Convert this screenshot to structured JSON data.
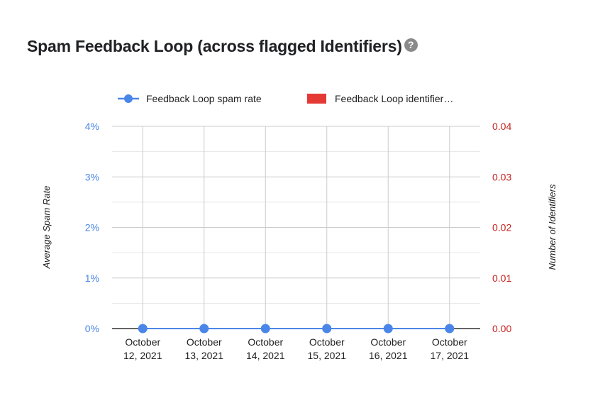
{
  "header": {
    "title": "Spam Feedback Loop (across flagged Identifiers)",
    "help_icon": "question-mark-icon"
  },
  "chart_data": {
    "type": "line",
    "title": "Spam Feedback Loop (across flagged Identifiers)",
    "categories": [
      "October 12, 2021",
      "October 13, 2021",
      "October 14, 2021",
      "October 15, 2021",
      "October 16, 2021",
      "October 17, 2021"
    ],
    "x_tick_lines": [
      [
        "October",
        "12, 2021"
      ],
      [
        "October",
        "13, 2021"
      ],
      [
        "October",
        "14, 2021"
      ],
      [
        "October",
        "15, 2021"
      ],
      [
        "October",
        "16, 2021"
      ],
      [
        "October",
        "17, 2021"
      ]
    ],
    "series": [
      {
        "name": "Feedback Loop spam rate",
        "type": "line",
        "axis": "left",
        "color": "#4a86e8",
        "values": [
          0,
          0,
          0,
          0,
          0,
          0
        ]
      },
      {
        "name": "Feedback Loop identifier…",
        "type": "bar",
        "axis": "right",
        "color": "#e53935",
        "values": [
          0,
          0,
          0,
          0,
          0,
          0
        ]
      }
    ],
    "y_left": {
      "label": "Average Spam Rate",
      "range": [
        0,
        0.04
      ],
      "ticks": [
        0,
        0.01,
        0.02,
        0.03,
        0.04
      ],
      "tick_labels": [
        "0%",
        "1%",
        "2%",
        "3%",
        "4%"
      ],
      "color": "#4a86e8"
    },
    "y_right": {
      "label": "Number of Identifiers",
      "range": [
        0,
        0.04
      ],
      "ticks": [
        0,
        0.01,
        0.02,
        0.03,
        0.04
      ],
      "tick_labels": [
        "0.00",
        "0.01",
        "0.02",
        "0.03",
        "0.04"
      ],
      "color": "#c5221f"
    },
    "grid": true,
    "legend_position": "top"
  }
}
